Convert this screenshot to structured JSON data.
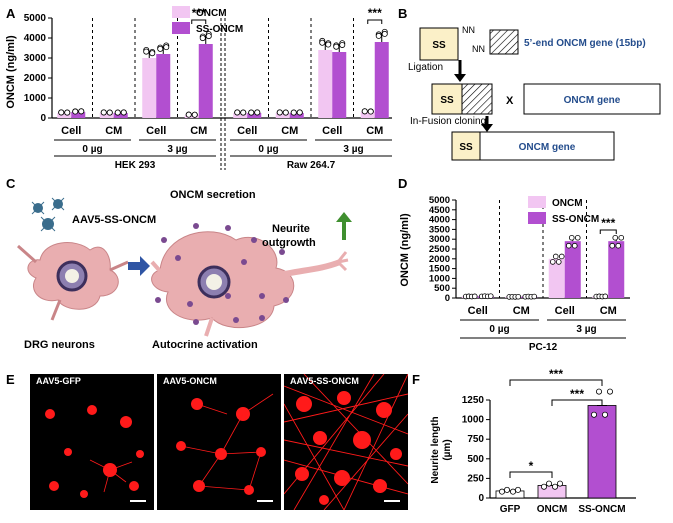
{
  "panels": {
    "A": {
      "letter": "A",
      "ylabel": "ONCM (ng/ml)",
      "yticks": [
        "0",
        "1000",
        "2000",
        "3000",
        "4000",
        "5000"
      ],
      "legend": [
        "ONCM",
        "SS-ONCM"
      ],
      "sig": [
        "***",
        "***"
      ],
      "fraction_labels": [
        "Cell",
        "CM",
        "Cell",
        "CM",
        "Cell",
        "CM",
        "Cell",
        "CM"
      ],
      "dose_labels": [
        "0 µg",
        "3 µg",
        "0 µg",
        "3 µg"
      ],
      "cell_lines": [
        "HEK 293",
        "Raw 264.7"
      ]
    },
    "B": {
      "letter": "B",
      "ss": "SS",
      "nn1": "NN",
      "nn2": "NN",
      "gene5": "5’-end ONCM gene (15bp)",
      "ligation": "Ligation",
      "x": "X",
      "oncm_gene": "ONCM gene",
      "infusion": "In-Fusion cloning",
      "final_ss": "SS",
      "final_gene": "ONCM gene",
      "mid_ss": "SS"
    },
    "C": {
      "letter": "C",
      "virus": "AAV5-SS-ONCM",
      "secretion": "ONCM secretion",
      "neurite": "Neurite",
      "outgrowth": "outgrowth",
      "drg": "DRG neurons",
      "autocrine": "Autocrine activation"
    },
    "D": {
      "letter": "D",
      "ylabel": "ONCM (ng/ml)",
      "yticks": [
        "0",
        "500",
        "1000",
        "1500",
        "2000",
        "2500",
        "3000",
        "3500",
        "4000",
        "4500",
        "5000"
      ],
      "legend": [
        "ONCM",
        "SS-ONCM"
      ],
      "sig": "***",
      "fraction_labels": [
        "Cell",
        "CM",
        "Cell",
        "CM"
      ],
      "dose_labels": [
        "0 µg",
        "3 µg"
      ],
      "cell_line": "PC-12"
    },
    "E": {
      "letter": "E",
      "images": [
        "AAV5-GFP",
        "AAV5-ONCM",
        "AAV5-SS-ONCM"
      ]
    },
    "F": {
      "letter": "F",
      "ylabel": "Neurite length (µm)",
      "ylabel1": "Neurite length",
      "ylabel2": "(µm)",
      "yticks": [
        "0",
        "250",
        "500",
        "750",
        "1000",
        "1250"
      ],
      "categories": [
        "GFP",
        "ONCM",
        "SS-ONCM"
      ],
      "sig": [
        "***",
        "***",
        "*"
      ]
    }
  },
  "colors": {
    "oncm": "#f2c6f2",
    "ssoncm": "#b24fd0",
    "neuron": "#e9aeb0",
    "dot": "#7a4a90",
    "arrow": "#2f55a4",
    "green": "#3f8f2f"
  },
  "chart_data": [
    {
      "type": "bar",
      "panel": "A",
      "ylabel": "ONCM (ng/ml)",
      "ylim": [
        0,
        5000
      ],
      "categories": [
        "HEK 293 Cell 0 µg",
        "HEK 293 CM 0 µg",
        "HEK 293 Cell 3 µg",
        "HEK 293 CM 3 µg",
        "Raw 264.7 Cell 0 µg",
        "Raw 264.7 CM 0 µg",
        "Raw 264.7 Cell 3 µg",
        "Raw 264.7 CM 3 µg"
      ],
      "series": [
        {
          "name": "ONCM",
          "values": [
            250,
            250,
            3000,
            150,
            250,
            250,
            3400,
            300
          ]
        },
        {
          "name": "SS-ONCM",
          "values": [
            300,
            250,
            3200,
            3700,
            250,
            250,
            3300,
            3800
          ]
        }
      ]
    },
    {
      "type": "bar",
      "panel": "D",
      "ylabel": "ONCM (ng/ml)",
      "ylim": [
        0,
        5000
      ],
      "categories": [
        "Cell 0 µg",
        "CM 0 µg",
        "Cell 3 µg",
        "CM 3 µg"
      ],
      "series": [
        {
          "name": "ONCM",
          "values": [
            80,
            60,
            2000,
            80
          ]
        },
        {
          "name": "SS-ONCM",
          "values": [
            90,
            70,
            2900,
            2900
          ]
        }
      ]
    },
    {
      "type": "bar",
      "panel": "F",
      "ylabel": "Neurite length (µm)",
      "ylim": [
        0,
        1250
      ],
      "categories": [
        "GFP",
        "ONCM",
        "SS-ONCM"
      ],
      "values": [
        90,
        160,
        1180
      ]
    }
  ]
}
